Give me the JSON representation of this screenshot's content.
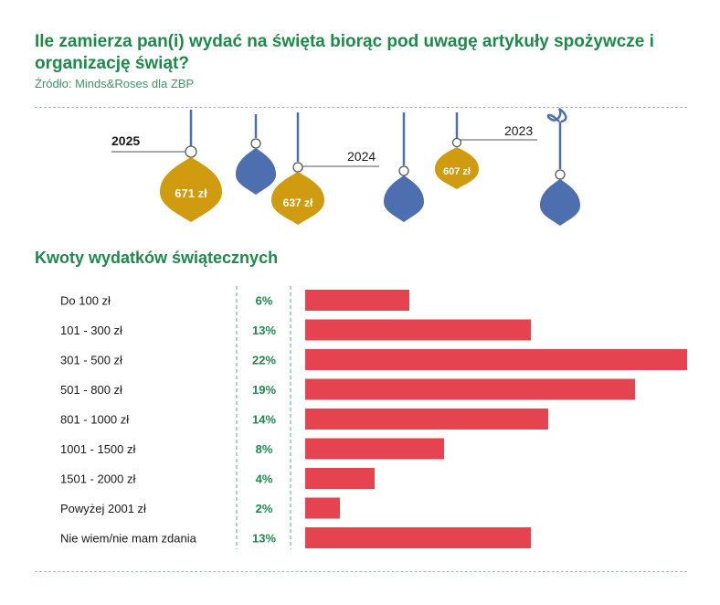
{
  "header": {
    "title": "Ile zamierza pan(i) wydać na święta biorąc pod uwagę artykuły spożywcze i organizację świąt?",
    "source": "Źródło: Minds&Roses dla ZBP"
  },
  "ornaments": {
    "items": [
      {
        "year": "2025",
        "value_label": "671 zł"
      },
      {
        "year": "2024",
        "value_label": "637 zł"
      },
      {
        "year": "2023",
        "value_label": "607 zł"
      }
    ],
    "colors": {
      "gold": "#d19b10",
      "blue": "#4d6fb0"
    }
  },
  "chart_data": {
    "type": "bar",
    "orientation": "horizontal",
    "title": "Kwoty wydatków świątecznych",
    "categories": [
      "Do 100 zł",
      "101 - 300 zł",
      "301 - 500 zł",
      "501 - 800 zł",
      "801 - 1000 zł",
      "1001 - 1500 zł",
      "1501 - 2000 zł",
      "Powyżej 2001 zł",
      "Nie wiem/nie mam zdania"
    ],
    "values": [
      6,
      13,
      22,
      19,
      14,
      8,
      4,
      2,
      13
    ],
    "value_labels": [
      "6%",
      "13%",
      "22%",
      "19%",
      "14%",
      "8%",
      "4%",
      "2%",
      "13%"
    ],
    "xlim": [
      0,
      22
    ],
    "bar_color": "#e5434f",
    "label_color": "#1d8a4c",
    "grid": false,
    "legend": "none"
  }
}
